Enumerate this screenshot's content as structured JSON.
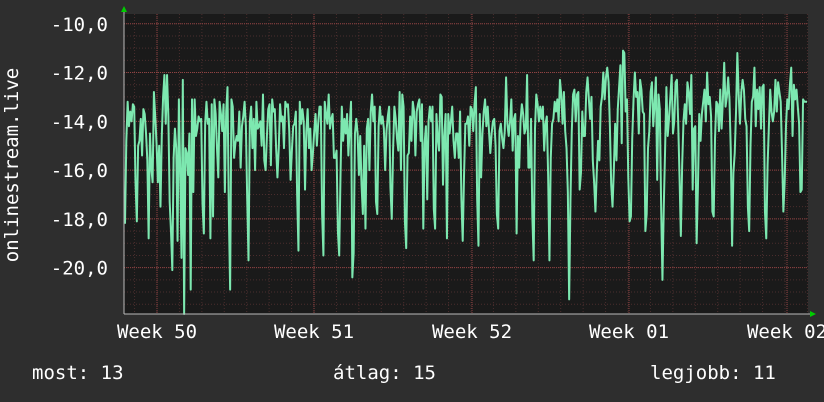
{
  "chart_data": {
    "type": "line",
    "ylabel": "onlinestream.live",
    "y_ticks": [
      "-10,0",
      "-12,0",
      "-14,0",
      "-16,0",
      "-18,0",
      "-20,0"
    ],
    "y_tick_values": [
      -10,
      -12,
      -14,
      -16,
      -18,
      -20
    ],
    "ylim": [
      -21.9,
      -9.6
    ],
    "x_ticks": [
      "Week 50",
      "Week 51",
      "Week 52",
      "Week 01",
      "Week 02"
    ],
    "grid": true,
    "colors": {
      "background": "#2e2e2e",
      "plot": "#1a1a1a",
      "line": "#7de8b0",
      "grid": "#6b3b3b",
      "axis_arrow": "#00cc00"
    },
    "series": [
      {
        "values": [
          -18.2,
          -14.8,
          -13.2,
          -14.2,
          -13.6,
          -14.0,
          -13.3,
          -13.4,
          -16.5,
          -18.1,
          -15.0,
          -14.8,
          -13.9,
          -15.4,
          -13.5,
          -13.7,
          -14.5,
          -15.6,
          -18.8,
          -14.5,
          -15.9,
          -16.5,
          -12.8,
          -13.8,
          -14.9,
          -16.5,
          -15.0,
          -17.5,
          -14.6,
          -13.0,
          -12.1,
          -14.1,
          -12.1,
          -13.8,
          -17.3,
          -18.5,
          -20.1,
          -15.5,
          -14.3,
          -15.1,
          -18.9,
          -13.1,
          -16.0,
          -19.6,
          -12.3,
          -21.9,
          -15.1,
          -15.3,
          -16.2,
          -14.5,
          -20.9,
          -13.1,
          -16.9,
          -13.1,
          -14.6,
          -14.3,
          -13.8,
          -14.0,
          -13.9,
          -17.4,
          -18.6,
          -14.1,
          -13.2,
          -14.1,
          -13.9,
          -18.8,
          -13.3,
          -17.9,
          -13.1,
          -13.7,
          -15.1,
          -16.3,
          -13.2,
          -13.7,
          -14.4,
          -13.3,
          -16.9,
          -13.6,
          -12.6,
          -17.7,
          -20.9,
          -13.1,
          -13.4,
          -15.5,
          -14.9,
          -14.6,
          -14.8,
          -13.6,
          -15.9,
          -14.2,
          -13.8,
          -13.2,
          -14.2,
          -17.2,
          -19.7,
          -14.0,
          -13.4,
          -15.1,
          -13.9,
          -16.0,
          -13.2,
          -14.3,
          -14.2,
          -14.0,
          -15.0,
          -12.9,
          -15.6,
          -16.0,
          -14.6,
          -13.5,
          -13.3,
          -15.8,
          -13.1,
          -13.6,
          -13.5,
          -15.1,
          -16.3,
          -15.1,
          -13.3,
          -14.0,
          -13.8,
          -15.1,
          -13.2,
          -13.4,
          -13.3,
          -14.4,
          -16.4,
          -15.2,
          -14.2,
          -14.1,
          -13.6,
          -17.0,
          -19.3,
          -13.2,
          -14.1,
          -13.5,
          -14.0,
          -16.8,
          -14.4,
          -13.5,
          -15.1,
          -14.3,
          -16.0,
          -15.3,
          -14.4,
          -13.7,
          -15.0,
          -14.1,
          -13.4,
          -13.4,
          -17.8,
          -19.5,
          -13.2,
          -13.7,
          -14.1,
          -12.9,
          -14.3,
          -13.9,
          -13.7,
          -15.5,
          -15.5,
          -15.2,
          -18.5,
          -19.5,
          -16.2,
          -13.4,
          -14.8,
          -13.9,
          -14.5,
          -13.7,
          -15.4,
          -14.2,
          -13.2,
          -20.4,
          -19.4,
          -14.5,
          -13.9,
          -14.5,
          -16.2,
          -14.6,
          -16.6,
          -17.8,
          -15.0,
          -18.4,
          -14.3,
          -13.9,
          -16.0,
          -13.6,
          -12.9,
          -14.0,
          -13.4,
          -17.3,
          -17.8,
          -14.2,
          -13.4,
          -14.1,
          -13.8,
          -14.3,
          -16.0,
          -14.4,
          -13.8,
          -13.4,
          -16.7,
          -18.0,
          -15.2,
          -13.4,
          -13.9,
          -14.7,
          -15.2,
          -12.8,
          -16.0,
          -12.9,
          -13.4,
          -18.1,
          -19.2,
          -15.4,
          -15.3,
          -13.8,
          -14.8,
          -13.2,
          -13.6,
          -15.4,
          -13.6,
          -13.3,
          -13.1,
          -14.8,
          -13.3,
          -18.4,
          -14.9,
          -14.2,
          -17.2,
          -14.0,
          -13.4,
          -14.0,
          -13.4,
          -17.6,
          -18.4,
          -13.7,
          -14.7,
          -15.2,
          -12.9,
          -13.0,
          -16.6,
          -14.6,
          -13.7,
          -18.8,
          -13.7,
          -14.5,
          -14.0,
          -13.4,
          -14.8,
          -15.5,
          -14.5,
          -14.5,
          -15.5,
          -13.6,
          -17.2,
          -18.9,
          -16.2,
          -14.1,
          -14.1,
          -13.8,
          -15.0,
          -13.4,
          -13.5,
          -14.4,
          -13.3,
          -12.6,
          -17.2,
          -19.1,
          -13.7,
          -16.3,
          -14.5,
          -13.6,
          -13.1,
          -14.2,
          -13.4,
          -14.4,
          -15.3,
          -14.5,
          -14.0,
          -13.9,
          -15.0,
          -17.8,
          -18.4,
          -14.4,
          -14.1,
          -14.7,
          -15.1,
          -14.4,
          -12.2,
          -14.1,
          -14.6,
          -14.0,
          -13.1,
          -15.2,
          -13.9,
          -13.7,
          -18.6,
          -14.6,
          -15.9,
          -14.0,
          -13.3,
          -13.7,
          -14.5,
          -14.3,
          -12.1,
          -15.9,
          -15.9,
          -13.9,
          -17.9,
          -19.7,
          -14.3,
          -12.9,
          -13.3,
          -14.0,
          -13.4,
          -13.9,
          -13.4,
          -15.2,
          -14.1,
          -13.8,
          -16.2,
          -19.7,
          -15.5,
          -14.1,
          -13.9,
          -13.2,
          -13.6,
          -13.1,
          -14.0,
          -12.3,
          -12.9,
          -14.1,
          -12.8,
          -14.4,
          -15.1,
          -16.9,
          -21.3,
          -17.2,
          -14.4,
          -12.9,
          -12.7,
          -14.0,
          -12.9,
          -12.8,
          -16.8,
          -16.1,
          -13.6,
          -14.6,
          -14.6,
          -12.8,
          -12.2,
          -13.1,
          -13.9,
          -13.0,
          -15.6,
          -16.5,
          -17.7,
          -16.1,
          -14.8,
          -15.6,
          -13.4,
          -13.0,
          -12.0,
          -13.1,
          -12.2,
          -11.8,
          -12.4,
          -14.2,
          -16.6,
          -17.5,
          -16.0,
          -14.1,
          -15.6,
          -13.5,
          -12.6,
          -11.7,
          -14.9,
          -11.1,
          -11.2,
          -13.6,
          -13.1,
          -16.3,
          -18.1,
          -17.9,
          -14.7,
          -13.1,
          -12.0,
          -13.0,
          -12.8,
          -14.5,
          -12.3,
          -12.7,
          -13.6,
          -13.7,
          -18.5,
          -17.8,
          -15.1,
          -14.4,
          -12.8,
          -12.4,
          -14.2,
          -13.3,
          -12.2,
          -16.4,
          -12.9,
          -13.5,
          -17.5,
          -20.5,
          -17.5,
          -15.2,
          -12.6,
          -14.6,
          -13.9,
          -13.0,
          -12.1,
          -14.5,
          -14.0,
          -12.4,
          -12.3,
          -14.1,
          -16.3,
          -18.7,
          -15.8,
          -14.0,
          -13.3,
          -14.1,
          -12.4,
          -12.8,
          -13.7,
          -12.1,
          -16.8,
          -14.3,
          -14.2,
          -19.0,
          -16.7,
          -13.7,
          -14.8,
          -13.7,
          -13.2,
          -12.7,
          -14.0,
          -12.0,
          -13.3,
          -13.0,
          -13.8,
          -17.7,
          -17.9,
          -14.7,
          -13.2,
          -13.3,
          -14.4,
          -12.7,
          -14.3,
          -13.1,
          -11.6,
          -13.4,
          -13.0,
          -12.2,
          -13.1,
          -15.2,
          -19.1,
          -16.1,
          -15.3,
          -13.6,
          -11.2,
          -12.9,
          -14.1,
          -12.8,
          -12.3,
          -12.7,
          -13.9,
          -14.2,
          -17.5,
          -18.5,
          -15.0,
          -13.2,
          -13.0,
          -11.8,
          -14.2,
          -12.7,
          -13.5,
          -12.6,
          -14.3,
          -12.6,
          -12.5,
          -17.7,
          -18.8,
          -15.8,
          -14.2,
          -12.7,
          -13.6,
          -14.0,
          -13.6,
          -12.3,
          -13.6,
          -12.4,
          -12.8,
          -13.2,
          -15.3,
          -17.7,
          -16.5,
          -14.2,
          -13.1,
          -13.5,
          -12.5,
          -11.8,
          -14.6,
          -12.5,
          -13.1,
          -12.7,
          -13.4,
          -14.1,
          -16.9,
          -16.8,
          -13.1,
          -13.2,
          -13.2,
          -13.2
        ]
      }
    ]
  },
  "stats": {
    "current": "most: 13",
    "average": "átlag: 15",
    "best": "legjobb: 11"
  }
}
